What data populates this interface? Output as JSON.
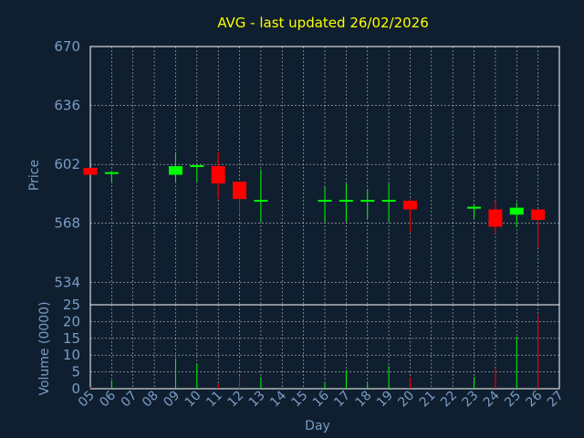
{
  "chart_data": {
    "title": "AVG - last updated 26/02/2026",
    "type": "candlestick",
    "colors": {
      "background": "#0f1f2f",
      "plot_background": "#0f1f2f",
      "title": "#ffff00",
      "axis_text": "#7a9cc6",
      "axis_title": "#7a9cc6",
      "grid": "#ffffff",
      "up": "#00ff00",
      "down": "#ff0000"
    },
    "price_panel": {
      "ylabel": "Price",
      "yticks": [
        534,
        568,
        602,
        636,
        670
      ],
      "ylim": [
        521,
        670
      ],
      "grid": true
    },
    "volume_panel": {
      "ylabel": "Volume (0000)",
      "yticks": [
        0,
        5,
        10,
        15,
        20,
        25
      ],
      "ylim": [
        0,
        25
      ],
      "grid": true
    },
    "xaxis": {
      "xlabel": "Day",
      "tick_labels": [
        "05",
        "06",
        "07",
        "08",
        "09",
        "10",
        "11",
        "12",
        "13",
        "14",
        "15",
        "16",
        "17",
        "18",
        "19",
        "20",
        "21",
        "22",
        "23",
        "24",
        "25",
        "26",
        "27"
      ]
    },
    "candles": [
      {
        "day": "05",
        "open": 600,
        "high": 600,
        "low": 596,
        "close": 596,
        "volume": 0.4
      },
      {
        "day": "06",
        "open": 597,
        "high": 598,
        "low": 592,
        "close": 597,
        "volume": 2.5
      },
      {
        "day": "09",
        "open": 596,
        "high": 609,
        "low": 592,
        "close": 601,
        "volume": 9.0
      },
      {
        "day": "10",
        "open": 600,
        "high": 601,
        "low": 592,
        "close": 601,
        "volume": 7.5
      },
      {
        "day": "11",
        "open": 601,
        "high": 609,
        "low": 582,
        "close": 591,
        "volume": 1.5
      },
      {
        "day": "12",
        "open": 592,
        "high": 592,
        "low": 573,
        "close": 582,
        "volume": 3.8
      },
      {
        "day": "13",
        "open": 581,
        "high": 599,
        "low": 569,
        "close": 581,
        "volume": 3.5
      },
      {
        "day": "16",
        "open": 581,
        "high": 589,
        "low": 569,
        "close": 581,
        "volume": 1.8
      },
      {
        "day": "17",
        "open": 581,
        "high": 591,
        "low": 569,
        "close": 581,
        "volume": 5.5
      },
      {
        "day": "18",
        "open": 581,
        "high": 588,
        "low": 571,
        "close": 581,
        "volume": 1.8
      },
      {
        "day": "19",
        "open": 581,
        "high": 591,
        "low": 569,
        "close": 581,
        "volume": 6.8
      },
      {
        "day": "20",
        "open": 581,
        "high": 582,
        "low": 563,
        "close": 576,
        "volume": 3.5
      },
      {
        "day": "23",
        "open": 576,
        "high": 579,
        "low": 571,
        "close": 577,
        "volume": 3.5
      },
      {
        "day": "24",
        "open": 576,
        "high": 581,
        "low": 562,
        "close": 566,
        "volume": 5.8
      },
      {
        "day": "25",
        "open": 573,
        "high": 580,
        "low": 566,
        "close": 577,
        "volume": 15.5
      },
      {
        "day": "26",
        "open": 576,
        "high": 576,
        "low": 554,
        "close": 570,
        "volume": 22.0
      }
    ]
  }
}
